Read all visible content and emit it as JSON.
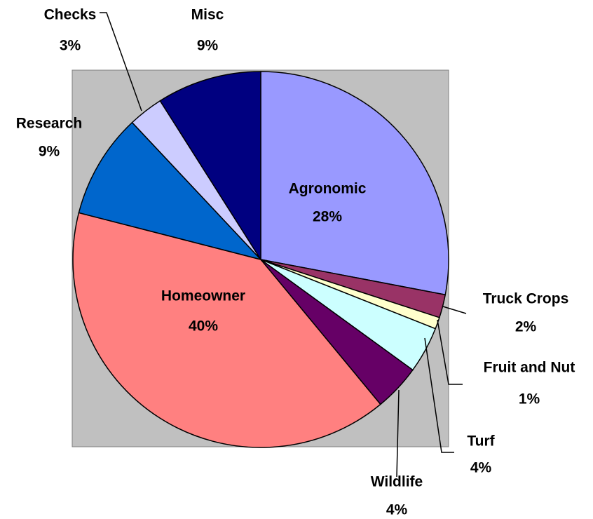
{
  "chart_data": {
    "type": "pie",
    "categories": [
      "Agronomic",
      "Truck Crops",
      "Fruit and Nut",
      "Turf",
      "Wildlife",
      "Homeowner",
      "Research",
      "Checks",
      "Misc"
    ],
    "values": [
      28,
      2,
      1,
      4,
      4,
      40,
      9,
      3,
      9
    ],
    "value_labels": [
      "28%",
      "2%",
      "1%",
      "4%",
      "4%",
      "40%",
      "9%",
      "3%",
      "9%"
    ],
    "colors": [
      "#9999ff",
      "#993366",
      "#ffffcc",
      "#ccffff",
      "#660066",
      "#ff8080",
      "#0066cc",
      "#ccccff",
      "#000080"
    ]
  }
}
